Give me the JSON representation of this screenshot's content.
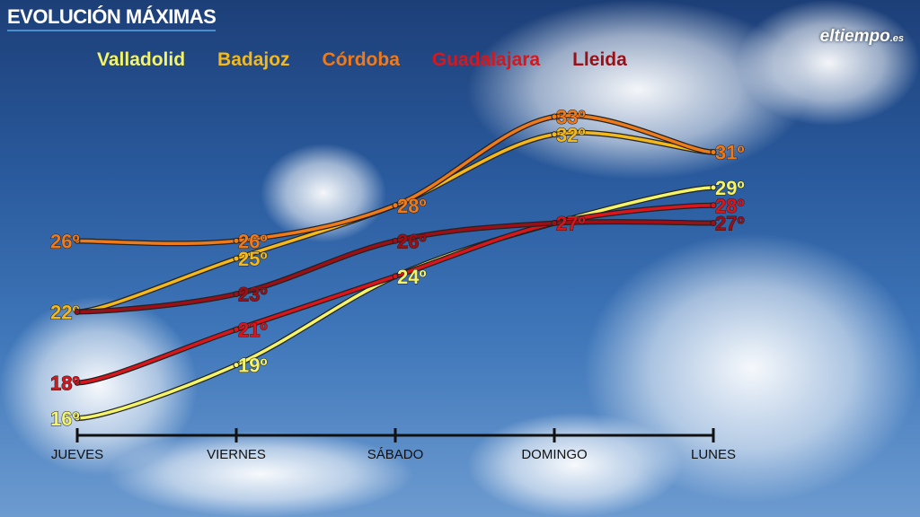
{
  "title": "EVOLUCIÓN MÁXIMAS",
  "logo": {
    "text": "eltiempo",
    "suffix": ".es"
  },
  "chart_data": {
    "type": "line",
    "title": "EVOLUCIÓN MÁXIMAS",
    "categories": [
      "JUEVES",
      "VIERNES",
      "SÁBADO",
      "DOMINGO",
      "LUNES"
    ],
    "unit": "º",
    "ylim": [
      16,
      33
    ],
    "grid": false,
    "legend_position": "top",
    "series": [
      {
        "name": "Valladolid",
        "color": "#f4f46a",
        "values": [
          16,
          19,
          24,
          27,
          29
        ],
        "labels": [
          "16º",
          "19º",
          "24º",
          null,
          "29º"
        ]
      },
      {
        "name": "Badajoz",
        "color": "#f2b81c",
        "values": [
          22,
          25,
          28,
          32,
          31
        ],
        "labels": [
          "22º",
          "25º",
          null,
          "32º",
          null
        ]
      },
      {
        "name": "Córdoba",
        "color": "#ef7a1a",
        "values": [
          26,
          26,
          28,
          33,
          31
        ],
        "labels": [
          "26º",
          "26º",
          "28º",
          "33º",
          "31º"
        ]
      },
      {
        "name": "Guadalajara",
        "color": "#d8161c",
        "values": [
          18,
          21,
          24,
          27,
          28
        ],
        "labels": [
          "18º",
          "21º",
          null,
          "27º",
          "28º"
        ]
      },
      {
        "name": "Lleida",
        "color": "#9b0f16",
        "values": [
          22,
          23,
          26,
          27,
          27
        ],
        "labels": [
          null,
          "23º",
          "26º",
          null,
          "27º"
        ]
      }
    ]
  }
}
